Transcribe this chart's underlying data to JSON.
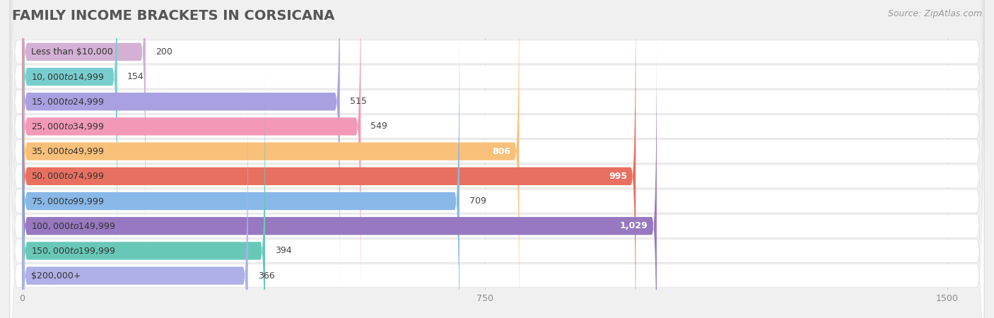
{
  "title": "FAMILY INCOME BRACKETS IN CORSICANA",
  "source": "Source: ZipAtlas.com",
  "categories": [
    "Less than $10,000",
    "$10,000 to $14,999",
    "$15,000 to $24,999",
    "$25,000 to $34,999",
    "$35,000 to $49,999",
    "$50,000 to $74,999",
    "$75,000 to $99,999",
    "$100,000 to $149,999",
    "$150,000 to $199,999",
    "$200,000+"
  ],
  "values": [
    200,
    154,
    515,
    549,
    806,
    995,
    709,
    1029,
    394,
    366
  ],
  "bar_colors": [
    "#d4b0d4",
    "#78cece",
    "#a8a0e0",
    "#f498b8",
    "#f9c07a",
    "#e87060",
    "#88b8e8",
    "#9878c0",
    "#68c8b8",
    "#b0b0e8"
  ],
  "xlim_max": 1500,
  "xticks": [
    0,
    750,
    1500
  ],
  "label_inside_threshold": 800,
  "background_color": "#f0f0f0",
  "row_background": "#ffffff",
  "title_fontsize": 14,
  "source_fontsize": 9,
  "label_fontsize": 9,
  "cat_fontsize": 9,
  "tick_fontsize": 9
}
